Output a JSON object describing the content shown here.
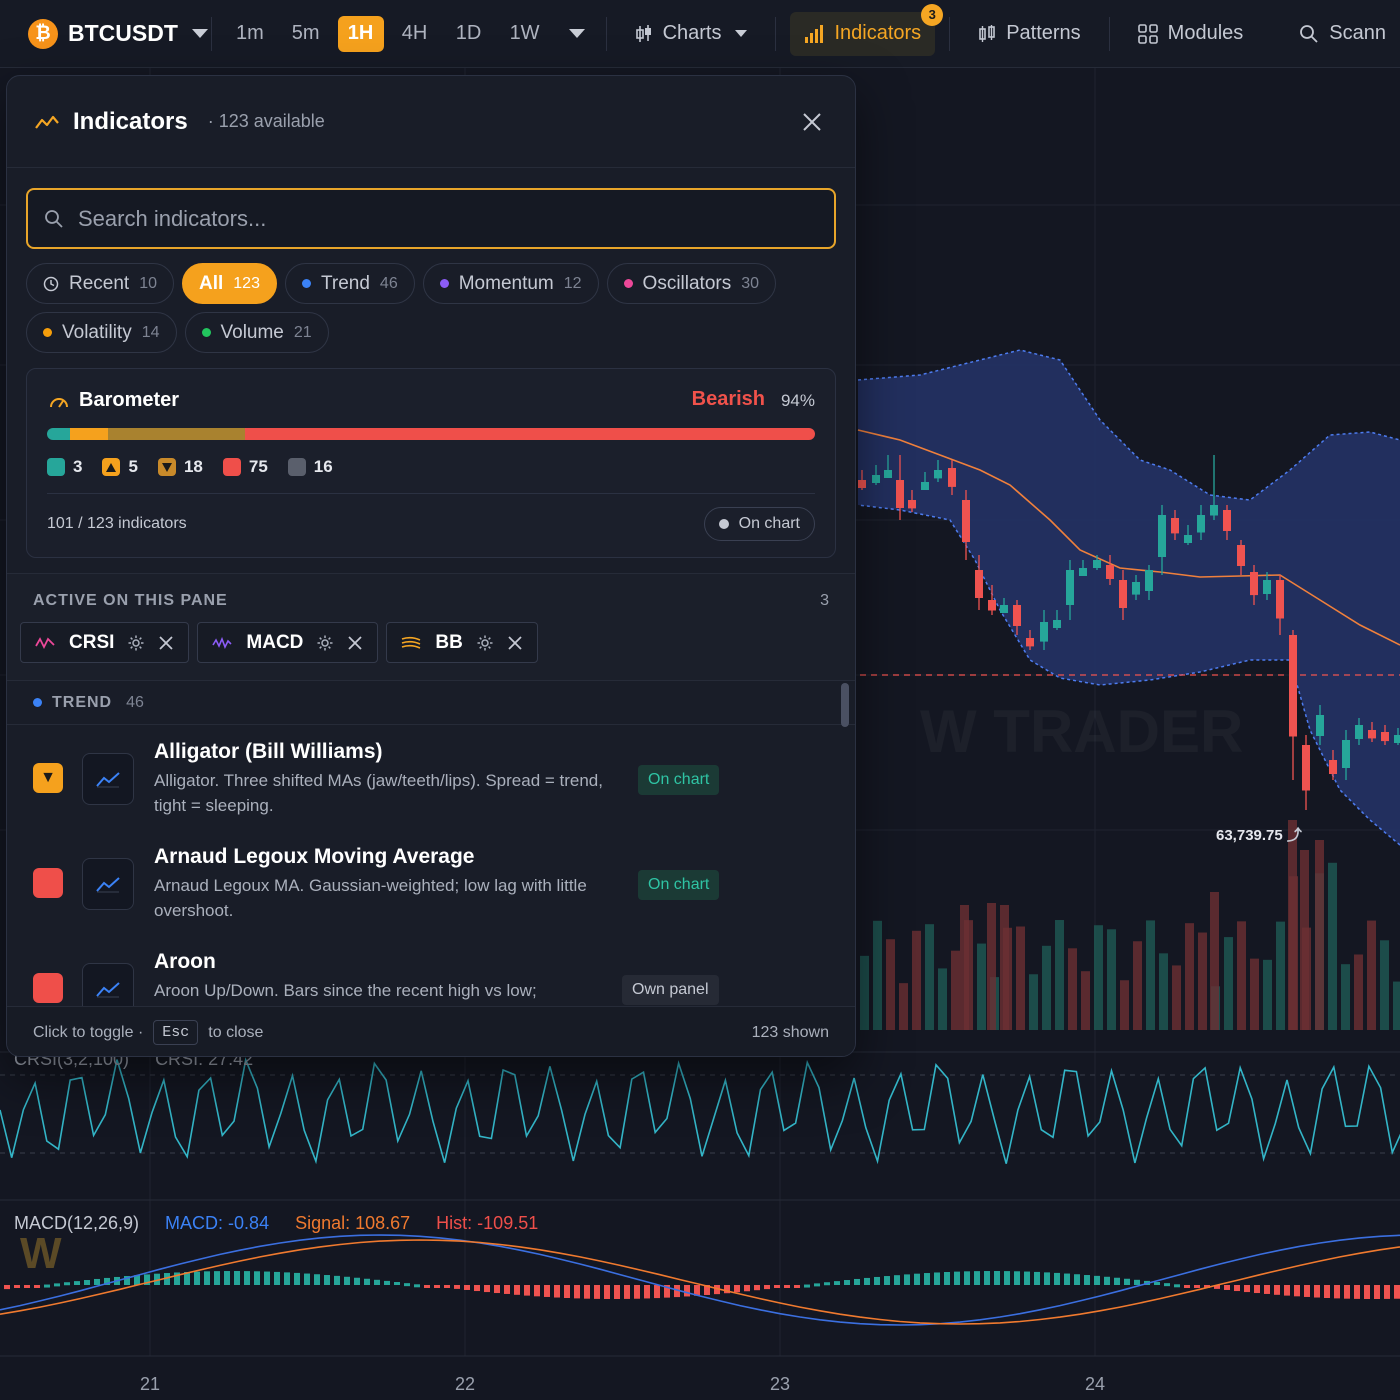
{
  "topbar": {
    "symbol": "BTCUSDT",
    "coin_glyph": "₿",
    "timeframes": [
      "1m",
      "5m",
      "1H",
      "4H",
      "1D",
      "1W"
    ],
    "active_timeframe": "1H",
    "charts_label": "Charts",
    "indicators_label": "Indicators",
    "indicators_badge": "3",
    "patterns_label": "Patterns",
    "modules_label": "Modules",
    "scanner_label": "Scann"
  },
  "panel": {
    "title": "Indicators",
    "subtitle": "· 123 available",
    "search_placeholder": "Search indicators...",
    "chips": [
      {
        "label": "Recent",
        "count": "10",
        "icon": "clock-icon"
      },
      {
        "label": "All",
        "count": "123",
        "active": true
      },
      {
        "label": "Trend",
        "count": "46",
        "color": "#3b82f6"
      },
      {
        "label": "Momentum",
        "count": "12",
        "color": "#8b5cf6"
      },
      {
        "label": "Oscillators",
        "count": "30",
        "color": "#ec4899"
      },
      {
        "label": "Volatility",
        "count": "14",
        "color": "#f59e0b"
      },
      {
        "label": "Volume",
        "count": "21",
        "color": "#22c55e"
      }
    ],
    "barometer": {
      "title": "Barometer",
      "verdict": "Bearish",
      "percent": "94%",
      "segments": [
        {
          "value": 3,
          "color": "#26a69a"
        },
        {
          "value": 5,
          "color": "#f5a11d"
        },
        {
          "value": 18,
          "color": "#a9822f"
        },
        {
          "value": 75,
          "color": "#ef4f4a"
        }
      ],
      "counts": [
        {
          "value": "3",
          "color": "#26a69a",
          "icon": "square-icon"
        },
        {
          "value": "5",
          "color": "#f5a11d",
          "icon": "triangle-up-icon"
        },
        {
          "value": "18",
          "color": "#c98a2a",
          "icon": "triangle-down-icon"
        },
        {
          "value": "75",
          "color": "#ef4f4a",
          "icon": "square-icon"
        },
        {
          "value": "16",
          "color": "#5a5f6c",
          "icon": "square-icon"
        }
      ],
      "footer": "101 / 123 indicators",
      "on_chart_label": "On chart"
    },
    "active_section": {
      "label": "ACTIVE ON THIS PANE",
      "count": "3",
      "items": [
        {
          "name": "CRSI",
          "icon": "wave-icon",
          "color": "#ec4899"
        },
        {
          "name": "MACD",
          "icon": "zigzag-icon",
          "color": "#8b5cf6"
        },
        {
          "name": "BB",
          "icon": "bands-icon",
          "color": "#f5a623"
        }
      ]
    },
    "group": {
      "label": "TREND",
      "count": "46",
      "color": "#3b82f6"
    },
    "items": [
      {
        "name": "Alligator (Bill Williams)",
        "desc": "Alligator. Three shifted MAs (jaw/teeth/lips). Spread = trend, tight = sleeping.",
        "tag": "On chart",
        "tag_type": "on",
        "fav_color": "#f5a11d",
        "fav_glyph": "▼"
      },
      {
        "name": "Arnaud Legoux Moving Average",
        "desc": "Arnaud Legoux MA. Gaussian-weighted; low lag with little overshoot.",
        "tag": "On chart",
        "tag_type": "on",
        "fav_color": "#ef4f4a",
        "fav_glyph": ""
      },
      {
        "name": "Aroon",
        "desc": "Aroon Up/Down. Bars since the recent high vs low;",
        "tag": "Own panel",
        "tag_type": "own",
        "fav_color": "#ef4f4a",
        "fav_glyph": ""
      }
    ],
    "footer": {
      "hint_a": "Click to toggle ·",
      "key": "Esc",
      "hint_b": "to close",
      "shown": "123 shown"
    }
  },
  "chart": {
    "price_label": "63,739.75",
    "crsi_label": "CRSI(3,2,100)",
    "crsi_value": "CRSI: 27.42",
    "macd_label": "MACD(12,26,9)",
    "macd_value": "MACD: -0.84",
    "signal_value": "Signal: 108.67",
    "hist_value": "Hist: -109.51",
    "watermark": "W TRADER",
    "x_ticks": [
      "21",
      "22",
      "23",
      "24"
    ],
    "colors": {
      "up": "#26a69a",
      "down": "#ef5350",
      "band": "#3f6fd6",
      "ma": "#f0803c",
      "macd": "#3b6fe0",
      "signal": "#f07a2f"
    }
  }
}
